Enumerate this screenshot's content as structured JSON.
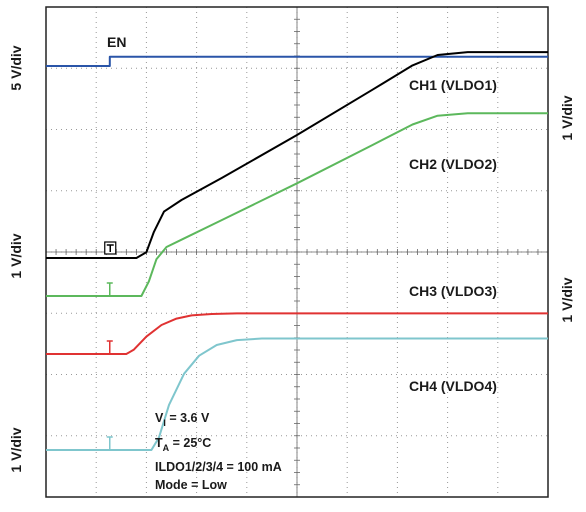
{
  "chart_data": {
    "type": "line",
    "title": "",
    "grid": true,
    "x": {
      "divisions": 10,
      "scale_label": ""
    },
    "y": {
      "divisions": 8
    },
    "scale_labels": {
      "left": [
        "5 V/div",
        "1 V/div",
        "1 V/div"
      ],
      "right": [
        "1 V/div",
        "1 V/div"
      ]
    },
    "series": [
      {
        "name": "EN",
        "color": "#2a55a8",
        "units_per_div": 5,
        "x": [
          0,
          1.27,
          1.27,
          10
        ],
        "y": [
          0,
          0,
          1,
          1
        ]
      },
      {
        "name": "CH1 (VLDO1)",
        "color": "#000000",
        "units_per_div": 1,
        "x": [
          0,
          1.8,
          2.0,
          2.15,
          2.35,
          2.7,
          3.5,
          5.0,
          6.5,
          7.3,
          7.8,
          8.4,
          10
        ],
        "y": [
          0,
          0,
          0.1,
          0.45,
          0.8,
          1.0,
          1.38,
          2.12,
          2.9,
          3.32,
          3.5,
          3.55,
          3.55
        ]
      },
      {
        "name": "CH2 (VLDO2)",
        "color": "#5cb85c",
        "units_per_div": 1,
        "x": [
          0,
          1.9,
          2.05,
          2.2,
          2.4,
          2.7,
          3.5,
          5.0,
          6.5,
          7.3,
          7.8,
          8.4,
          10
        ],
        "y": [
          0,
          0,
          0.3,
          0.75,
          1.0,
          1.15,
          1.55,
          2.3,
          3.08,
          3.5,
          3.68,
          3.73,
          3.73
        ]
      },
      {
        "name": "CH3 (VLDO3)",
        "color": "#e03232",
        "units_per_div": 1,
        "x": [
          0,
          1.6,
          1.75,
          2.0,
          2.3,
          2.6,
          2.9,
          3.3,
          3.8,
          10
        ],
        "y": [
          0,
          0,
          0.15,
          0.6,
          1.0,
          1.22,
          1.33,
          1.38,
          1.4,
          1.4
        ]
      },
      {
        "name": "CH4 (VLDO4)",
        "color": "#7fc6cd",
        "units_per_div": 1,
        "x": [
          0,
          2.1,
          2.25,
          2.45,
          2.75,
          3.05,
          3.4,
          3.8,
          4.3,
          10
        ],
        "y": [
          0,
          0,
          0.15,
          0.55,
          0.93,
          1.15,
          1.28,
          1.34,
          1.36,
          1.36
        ]
      }
    ],
    "legend": "labels on curves",
    "annotations": {
      "vi": {
        "v": "V",
        "sub": "I",
        "val": " = 3.6 V"
      },
      "ta": {
        "v": "T",
        "sub": "A",
        "val": " = 25°C"
      },
      "iload": "ILDO1/2/3/4  = 100 mA",
      "mode": "Mode = Low"
    }
  }
}
